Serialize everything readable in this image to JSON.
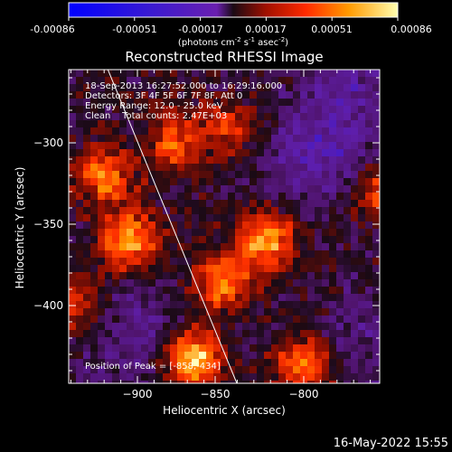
{
  "chart_data": {
    "type": "heatmap",
    "title": "Reconstructed RHESSI Image",
    "xlabel": "Heliocentric X (arcsec)",
    "ylabel": "Heliocentric Y (arcsec)",
    "xlim": [
      -945,
      -855
    ],
    "ylim": [
      -452,
      -262
    ],
    "x_ticks": [
      -900,
      -850,
      -800
    ],
    "y_ticks": [
      -300,
      -350,
      -400
    ],
    "colorbar": {
      "ticks": [
        "-0.00086",
        "-0.00051",
        "-0.00017",
        "0.00017",
        "0.00051",
        "0.00086"
      ],
      "unit_prefix": "(photons cm",
      "unit_exp1": "-2",
      "unit_mid": " s",
      "unit_exp2": "-1",
      "unit_mid2": " asec",
      "unit_exp3": "-2",
      "unit_suffix": ")",
      "range": [
        -0.00086,
        0.00086
      ]
    },
    "annotations": [
      "18-Sep-2013 16:27:52.000 to 16:29:16.000",
      "Detectors: 3F 4F 5F 6F 7F 8F, Att 0",
      "Energy Range: 12.0 - 25.0 keV",
      "Clean    Total counts: 2.47E+03"
    ],
    "peak_label": "Position of Peak = [-858,-434]",
    "hot_spots": [
      {
        "x": -866,
        "y": -432,
        "value": 0.00086
      },
      {
        "x": -905,
        "y": -360,
        "value": 0.00075
      },
      {
        "x": -822,
        "y": -360,
        "value": 0.0007
      },
      {
        "x": -920,
        "y": -320,
        "value": 0.0006
      },
      {
        "x": -848,
        "y": -385,
        "value": 0.00065
      },
      {
        "x": -878,
        "y": -300,
        "value": 0.0005
      },
      {
        "x": -800,
        "y": -437,
        "value": 0.0006
      },
      {
        "x": -752,
        "y": -330,
        "value": 0.0005
      },
      {
        "x": -938,
        "y": -400,
        "value": 0.0004
      },
      {
        "x": -845,
        "y": -290,
        "value": 0.0004
      }
    ],
    "cold_spots": [
      {
        "x": -790,
        "y": -305,
        "value": -0.0004
      },
      {
        "x": -770,
        "y": -250,
        "value": -0.0003
      },
      {
        "x": -900,
        "y": -420,
        "value": -0.00025
      },
      {
        "x": -760,
        "y": -420,
        "value": -0.0002
      }
    ]
  },
  "timestamp": "16-May-2022 15:55"
}
